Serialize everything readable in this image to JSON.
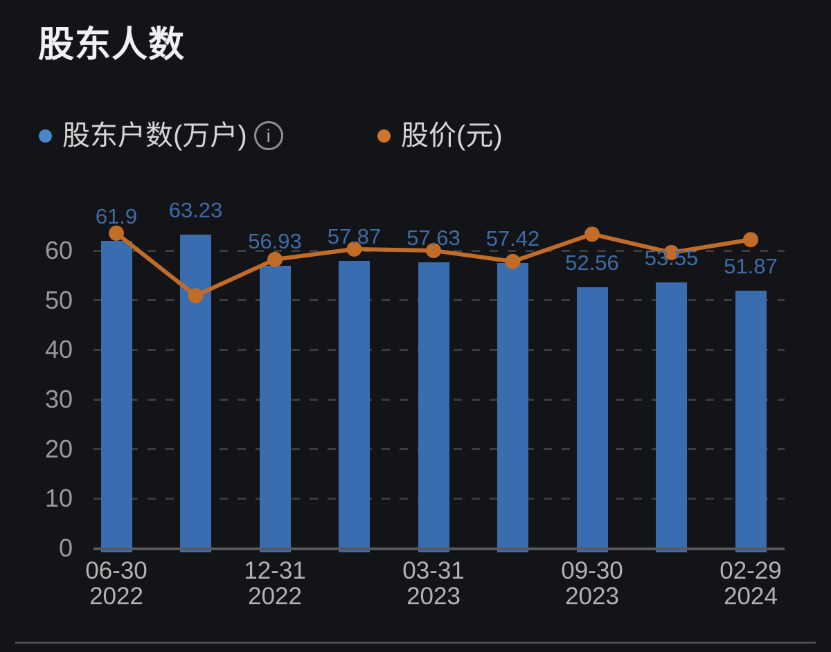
{
  "title": "股东人数",
  "legend": {
    "holders": {
      "label": "股东户数(万户)",
      "dot_color": "#4a86c8"
    },
    "price": {
      "label": "股价(元)",
      "dot_color": "#d1762a"
    }
  },
  "info_icon_glyph": "i",
  "chart_data": {
    "type": "bar",
    "title": "股东人数",
    "legend_position": "top-left",
    "grid": "horizontal dashed",
    "yticks": [
      0,
      10,
      20,
      30,
      40,
      50,
      60
    ],
    "ylim": [
      0,
      66
    ],
    "series": [
      {
        "name": "股东户数(万户)",
        "type": "bar",
        "color": "#3a6cb0",
        "label_color": "#3f6ba6",
        "values": [
          61.9,
          63.23,
          56.93,
          57.87,
          57.63,
          57.42,
          52.56,
          53.55,
          51.87
        ],
        "value_labels": [
          "61.9",
          "63.23",
          "56.93",
          "57.87",
          "57.63",
          "57.42",
          "52.56",
          "53.55",
          "51.87"
        ]
      },
      {
        "name": "股价(元)",
        "type": "line",
        "color": "#c16c28",
        "values": [
          63.5,
          50.9,
          58.2,
          60.3,
          60.0,
          57.8,
          63.3,
          59.6,
          62.2
        ]
      }
    ],
    "x_ticks": [
      {
        "bar_index": 0,
        "line1": "06-30",
        "line2": "2022"
      },
      {
        "bar_index": 2,
        "line1": "12-31",
        "line2": "2022"
      },
      {
        "bar_index": 4,
        "line1": "03-31",
        "line2": "2023"
      },
      {
        "bar_index": 6,
        "line1": "09-30",
        "line2": "2023"
      },
      {
        "bar_index": 8,
        "line1": "02-29",
        "line2": "2024"
      }
    ]
  }
}
